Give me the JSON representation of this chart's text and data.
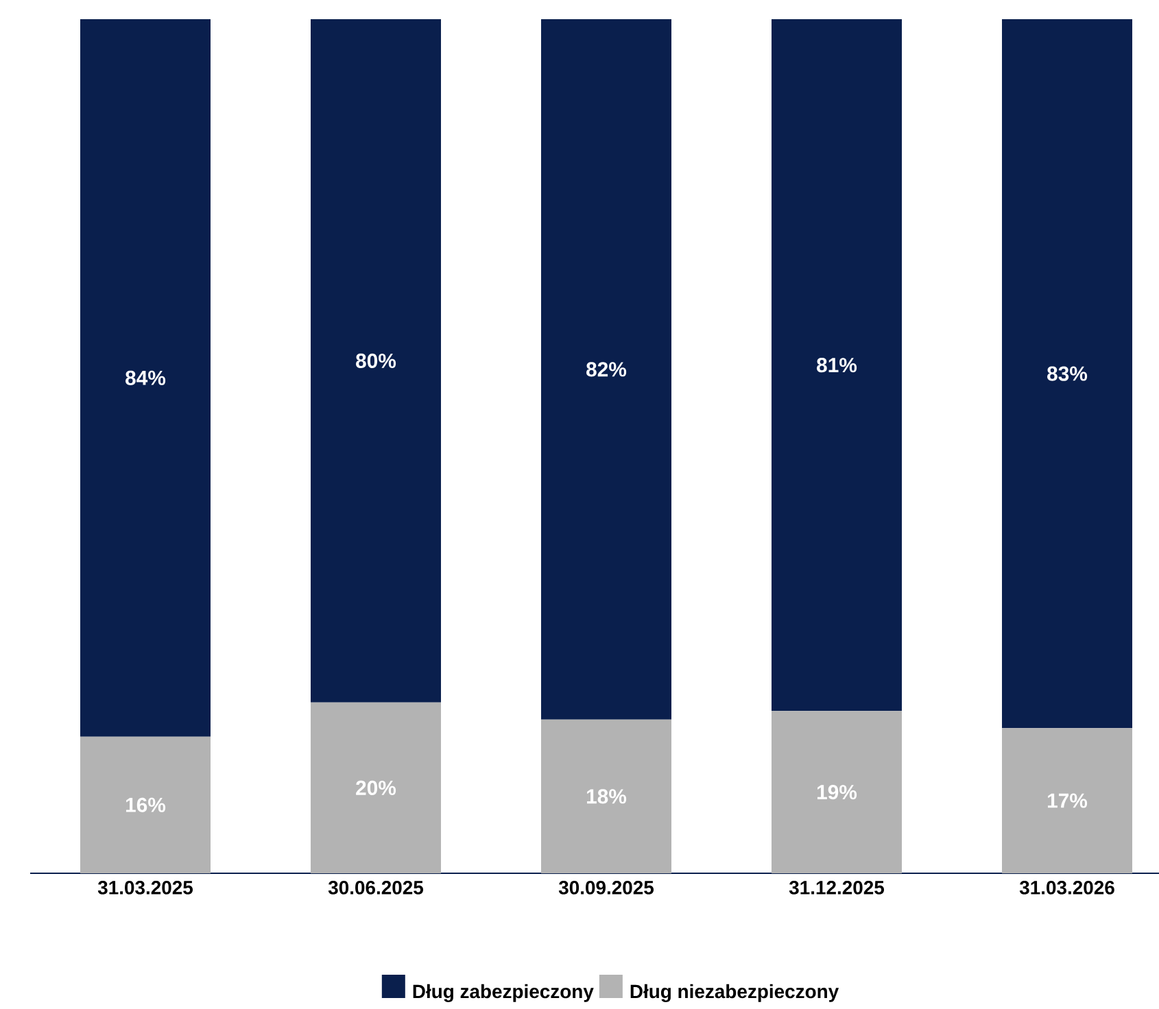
{
  "chart_data": {
    "type": "bar",
    "stacked": true,
    "legend": "bottom",
    "categories": [
      "31.03.2025",
      "30.06.2025",
      "30.09.2025",
      "31.12.2025",
      "31.03.2026"
    ],
    "series": [
      {
        "name": "Dług niezabezpieczony",
        "color": "#b3b3b3",
        "values": [
          16,
          20,
          18,
          19,
          17
        ],
        "value_labels": [
          "16%",
          "20%",
          "18%",
          "19%",
          "17%"
        ]
      },
      {
        "name": "Dług zabezpieczony",
        "color": "#0a1f4d",
        "values": [
          84,
          80,
          82,
          81,
          83
        ],
        "value_labels": [
          "84%",
          "80%",
          "82%",
          "81%",
          "83%"
        ]
      }
    ]
  }
}
